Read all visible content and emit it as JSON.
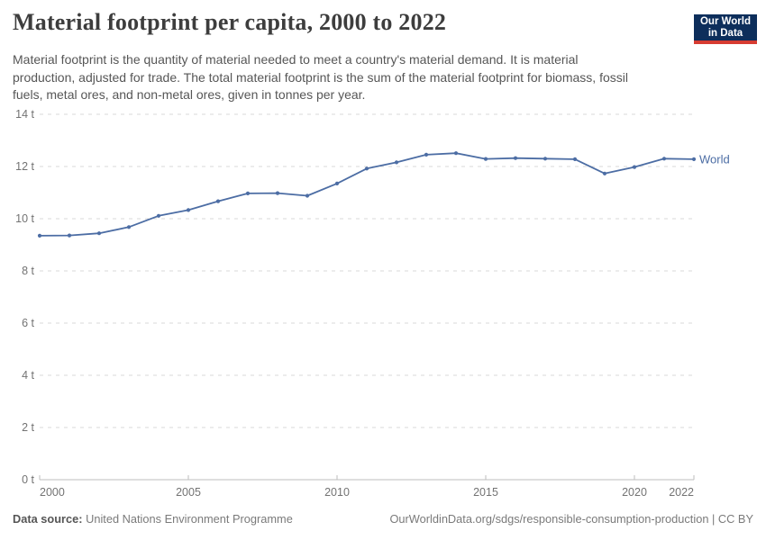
{
  "header": {
    "title": "Material footprint per capita, 2000 to 2022",
    "logo_line1": "Our World",
    "logo_line2": "in Data"
  },
  "subtitle": {
    "lines": [
      "Material footprint is the quantity of material needed to meet a country's material demand. It is material",
      "production, adjusted for trade. The total material footprint is the sum of the material footprint for biomass, fossil",
      "fuels, metal ores, and non-metal ores, given in tonnes per year."
    ]
  },
  "colors": {
    "line_blue": "#4c6da4",
    "logo_navy": "#0d2e5b",
    "logo_red": "#d73c32",
    "gridline": "#d9d9d9",
    "axis": "#bdbdbd",
    "tick_text": "#737373"
  },
  "chart_data": {
    "type": "line",
    "title": "Material footprint per capita, 2000 to 2022",
    "xlabel": "",
    "ylabel": "tonnes per year",
    "xlim": [
      2000,
      2022
    ],
    "ylim": [
      0,
      14
    ],
    "grid": "horizontal-dashed",
    "legend": "end-of-line-label",
    "x_ticks": [
      {
        "value": 2000,
        "label": "2000"
      },
      {
        "value": 2005,
        "label": "2005"
      },
      {
        "value": 2010,
        "label": "2010"
      },
      {
        "value": 2015,
        "label": "2015"
      },
      {
        "value": 2020,
        "label": "2020"
      },
      {
        "value": 2022,
        "label": "2022"
      }
    ],
    "y_ticks": [
      {
        "value": 0,
        "label": "0 t"
      },
      {
        "value": 2,
        "label": "2 t"
      },
      {
        "value": 4,
        "label": "4 t"
      },
      {
        "value": 6,
        "label": "6 t"
      },
      {
        "value": 8,
        "label": "8 t"
      },
      {
        "value": 10,
        "label": "10 t"
      },
      {
        "value": 12,
        "label": "12 t"
      },
      {
        "value": 14,
        "label": "14 t"
      }
    ],
    "series": [
      {
        "name": "World",
        "color": "#4c6da4",
        "x": [
          2000,
          2001,
          2002,
          2003,
          2004,
          2005,
          2006,
          2007,
          2008,
          2009,
          2010,
          2011,
          2012,
          2013,
          2014,
          2015,
          2016,
          2017,
          2018,
          2019,
          2020,
          2021,
          2022
        ],
        "values": [
          9.35,
          9.36,
          9.44,
          9.68,
          10.11,
          10.33,
          10.67,
          10.97,
          10.98,
          10.88,
          11.35,
          11.92,
          12.16,
          12.45,
          12.51,
          12.29,
          12.32,
          12.3,
          12.28,
          11.73,
          11.98,
          12.3,
          12.28
        ]
      }
    ]
  },
  "footer": {
    "source_label": "Data source:",
    "source_value": " United Nations Environment Programme",
    "attribution": "OurWorldinData.org/sdgs/responsible-consumption-production | CC BY"
  }
}
